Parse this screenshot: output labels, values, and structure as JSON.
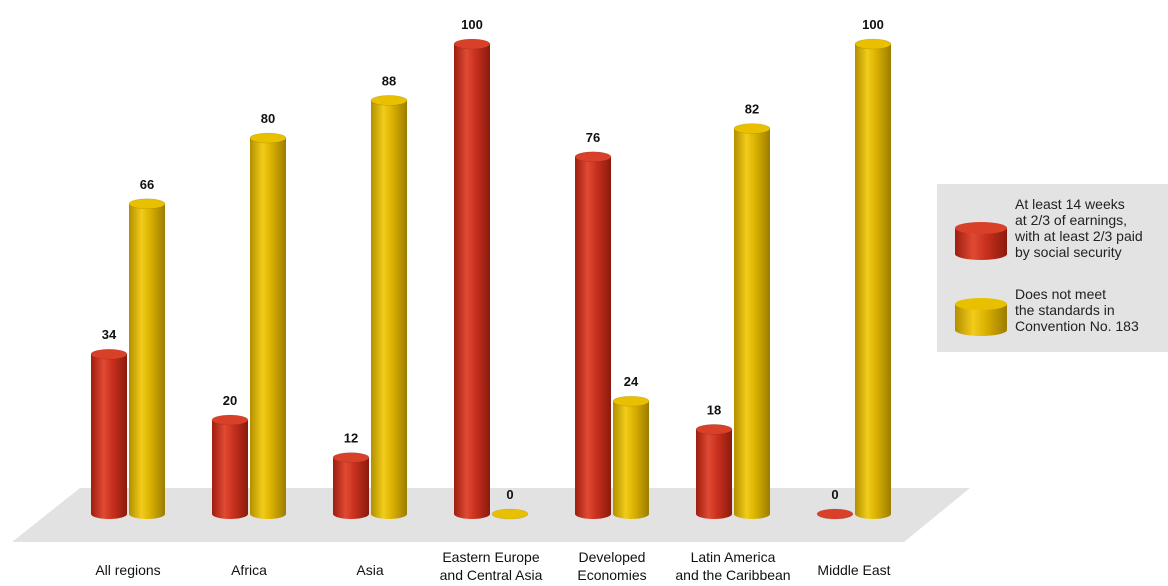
{
  "chart_data": {
    "type": "bar",
    "categories": [
      "All regions",
      "Africa",
      "Asia",
      "Eastern Europe\nand Central Asia",
      "Developed\nEconomies",
      "Latin America\nand the Caribbean",
      "Middle East"
    ],
    "series": [
      {
        "name": "At least 14 weeks\nat 2/3 of earnings,\nwith at least 2/3 paid\nby social security",
        "color": "#c8301e",
        "values": [
          34,
          20,
          12,
          100,
          76,
          18,
          0
        ]
      },
      {
        "name": "Does not meet\nthe standards in\nConvention No. 183",
        "color": "#d9b000",
        "values": [
          66,
          80,
          88,
          0,
          24,
          82,
          100
        ]
      }
    ],
    "ylim": [
      0,
      100
    ],
    "data_labels": true,
    "grid": false,
    "legend_position": "right",
    "style": "3d-cylinder"
  },
  "legend": {
    "items": [
      {
        "label": "At least 14 weeks\nat 2/3 of earnings,\nwith at least 2/3 paid\nby social security",
        "icon": "red-cylinder-icon"
      },
      {
        "label": "Does not meet\nthe standards in\nConvention No. 183",
        "icon": "yellow-cylinder-icon"
      }
    ]
  }
}
